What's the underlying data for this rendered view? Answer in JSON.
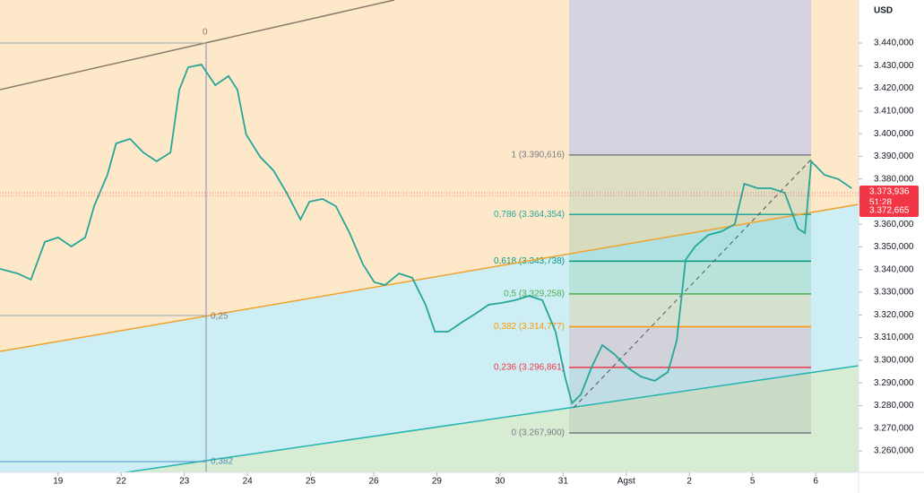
{
  "chart_data": {
    "type": "line",
    "currency": "USD",
    "color": "#26a69a",
    "x": [
      -0.92,
      -0.64,
      -0.43,
      -0.21,
      0,
      0.21,
      0.43,
      0.57,
      0.78,
      0.92,
      1.14,
      1.35,
      1.56,
      1.78,
      1.92,
      2.06,
      2.27,
      2.49,
      2.7,
      2.84,
      2.98,
      3.2,
      3.41,
      3.62,
      3.84,
      3.98,
      4.19,
      4.4,
      4.62,
      4.83,
      5.01,
      5.18,
      5.4,
      5.61,
      5.82,
      5.97,
      6.18,
      6.39,
      6.61,
      6.82,
      7.03,
      7.24,
      7.46,
      7.67,
      7.88,
      8.03,
      8.14,
      8.28,
      8.45,
      8.62,
      8.81,
      9.02,
      9.23,
      9.45,
      9.66,
      9.8,
      9.94,
      10.09,
      10.3,
      10.51,
      10.72,
      10.87,
      11.08,
      11.29,
      11.51,
      11.72,
      11.83,
      11.93,
      12.14,
      12.36,
      12.57
    ],
    "values": [
      3340300,
      3338300,
      3335600,
      3352200,
      3354200,
      3350200,
      3354200,
      3368000,
      3381800,
      3395700,
      3397700,
      3391700,
      3387800,
      3391700,
      3419400,
      3429300,
      3430500,
      3421400,
      3425400,
      3419400,
      3399600,
      3389800,
      3383800,
      3373900,
      3362100,
      3370000,
      3371200,
      3368000,
      3356100,
      3342300,
      3334400,
      3333200,
      3338300,
      3336400,
      3324500,
      3312600,
      3312600,
      3316600,
      3320500,
      3324500,
      3325300,
      3326500,
      3328400,
      3326500,
      3312600,
      3292800,
      3281000,
      3284900,
      3296800,
      3306700,
      3302700,
      3296800,
      3292800,
      3290900,
      3294800,
      3308700,
      3344300,
      3350200,
      3355300,
      3356900,
      3360100,
      3377900,
      3375900,
      3375900,
      3373900,
      3358100,
      3356100,
      3387800,
      3381800,
      3379900,
      3375900
    ],
    "xlim": [
      -0.92,
      12.68
    ],
    "xticks": [
      {
        "value": 0,
        "label": "19"
      },
      {
        "value": 1,
        "label": "22"
      },
      {
        "value": 2,
        "label": "23"
      },
      {
        "value": 3,
        "label": "24"
      },
      {
        "value": 4,
        "label": "25"
      },
      {
        "value": 5,
        "label": "26"
      },
      {
        "value": 6,
        "label": "29"
      },
      {
        "value": 7,
        "label": "30"
      },
      {
        "value": 8,
        "label": "31"
      },
      {
        "value": 9,
        "label": "Agst"
      },
      {
        "value": 10,
        "label": "2"
      },
      {
        "value": 11,
        "label": "5"
      },
      {
        "value": 12,
        "label": "6"
      }
    ],
    "ylim": [
      3250500,
      3459000
    ],
    "yticks": [
      {
        "value": 3260000,
        "label": "3.260,000"
      },
      {
        "value": 3270000,
        "label": "3.270,000"
      },
      {
        "value": 3280000,
        "label": "3.280,000"
      },
      {
        "value": 3290000,
        "label": "3.290,000"
      },
      {
        "value": 3300000,
        "label": "3.300,000"
      },
      {
        "value": 3310000,
        "label": "3.310,000"
      },
      {
        "value": 3320000,
        "label": "3.320,000"
      },
      {
        "value": 3330000,
        "label": "3.330,000"
      },
      {
        "value": 3340000,
        "label": "3.340,000"
      },
      {
        "value": 3350000,
        "label": "3.350,000"
      },
      {
        "value": 3360000,
        "label": "3.360,000"
      },
      {
        "value": 3370000,
        "label": "3.370,000"
      },
      {
        "value": 3380000,
        "label": "3.380,000"
      },
      {
        "value": 3390000,
        "label": "3.390,000"
      },
      {
        "value": 3400000,
        "label": "3.400,000"
      },
      {
        "value": 3410000,
        "label": "3.410,000"
      },
      {
        "value": 3420000,
        "label": "3.420,000"
      },
      {
        "value": 3430000,
        "label": "3.430,000"
      },
      {
        "value": 3440000,
        "label": "3.440,000"
      }
    ],
    "fib_levels": [
      {
        "label": "1 (3.390,616)",
        "value": 3390616,
        "color": "#787b86"
      },
      {
        "label": "0,786 (3.364,354)",
        "value": 3364354,
        "color": "#26a69a"
      },
      {
        "label": "0,618 (3.343,738)",
        "value": 3343738,
        "color": "#089981"
      },
      {
        "label": "0,5 (3.329,258)",
        "value": 3329258,
        "color": "#4caf50"
      },
      {
        "label": "0,382 (3.314,777)",
        "value": 3314777,
        "color": "#ff9800"
      },
      {
        "label": "0,236 (3.296,861)",
        "value": 3296861,
        "color": "#f23645"
      },
      {
        "label": "0 (3.267,900)",
        "value": 3267900,
        "color": "#787b86"
      }
    ],
    "price_tags": [
      {
        "value": 3373936,
        "label": "3.373,936",
        "countdown": "51:28"
      },
      {
        "value": 3372665,
        "label": "3.372,665"
      }
    ],
    "drawing_labels": [
      "0",
      "0,25",
      "0,382"
    ]
  }
}
